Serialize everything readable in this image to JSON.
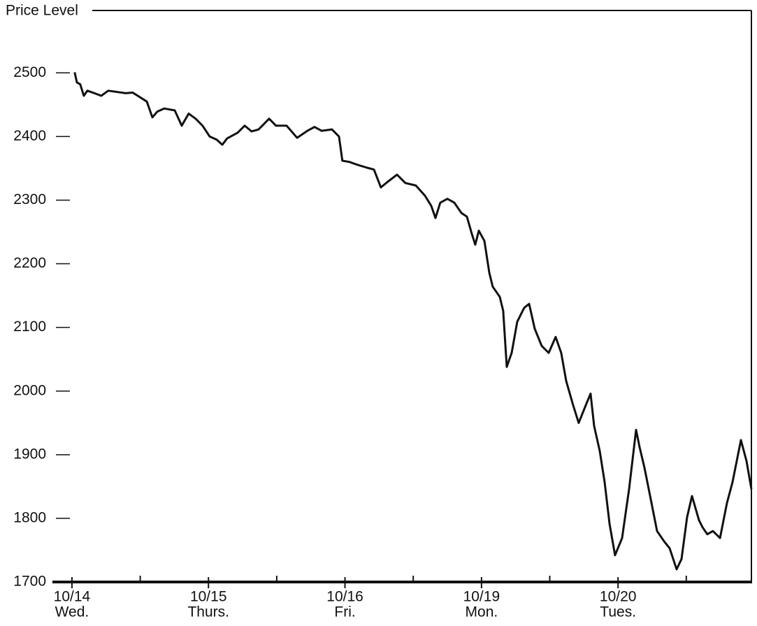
{
  "chart_data": {
    "type": "line",
    "y_axis_label": "Price Level",
    "xlim": [
      -0.143,
      4.977
    ],
    "ylim": [
      1700,
      2598
    ],
    "yticks": [
      1700,
      1800,
      1900,
      2000,
      2100,
      2200,
      2300,
      2400,
      2500
    ],
    "xticks": [
      {
        "value": 0,
        "label": "10/14",
        "sublabel": "Wed."
      },
      {
        "value": 1,
        "label": "10/15",
        "sublabel": "Thurs."
      },
      {
        "value": 2,
        "label": "10/16",
        "sublabel": "Fri."
      },
      {
        "value": 3,
        "label": "10/19",
        "sublabel": "Mon."
      },
      {
        "value": 4,
        "label": "10/20",
        "sublabel": "Tues."
      }
    ],
    "minor_xticks": [
      0.5,
      1.5,
      2.5,
      3.5,
      4.5
    ],
    "series": [
      {
        "color": "#111111",
        "x": [
          0.02,
          0.036,
          0.061,
          0.087,
          0.113,
          0.164,
          0.215,
          0.266,
          0.394,
          0.445,
          0.548,
          0.589,
          0.625,
          0.676,
          0.753,
          0.804,
          0.855,
          0.906,
          0.957,
          1.009,
          1.06,
          1.101,
          1.137,
          1.214,
          1.265,
          1.316,
          1.367,
          1.444,
          1.495,
          1.572,
          1.649,
          1.725,
          1.777,
          1.828,
          1.905,
          1.956,
          1.981,
          2.033,
          2.084,
          2.161,
          2.212,
          2.263,
          2.314,
          2.381,
          2.442,
          2.519,
          2.586,
          2.632,
          2.663,
          2.698,
          2.75,
          2.801,
          2.852,
          2.893,
          2.929,
          2.954,
          2.98,
          3.021,
          3.057,
          3.082,
          3.134,
          3.159,
          3.185,
          3.221,
          3.262,
          3.313,
          3.349,
          3.39,
          3.441,
          3.492,
          3.543,
          3.584,
          3.62,
          3.671,
          3.712,
          3.774,
          3.799,
          3.825,
          3.866,
          3.902,
          3.938,
          3.978,
          4.03,
          4.081,
          4.132,
          4.158,
          4.194,
          4.235,
          4.286,
          4.337,
          4.378,
          4.429,
          4.465,
          4.506,
          4.542,
          4.593,
          4.619,
          4.654,
          4.695,
          4.747,
          4.798,
          4.839,
          4.9,
          4.941,
          4.977
        ],
        "values": [
          2501,
          2485,
          2482,
          2464,
          2472,
          2468,
          2464,
          2472,
          2468,
          2469,
          2455,
          2430,
          2439,
          2444,
          2441,
          2417,
          2436,
          2428,
          2417,
          2400,
          2395,
          2387,
          2397,
          2406,
          2417,
          2408,
          2411,
          2428,
          2417,
          2417,
          2398,
          2409,
          2415,
          2409,
          2411,
          2400,
          2362,
          2360,
          2356,
          2351,
          2348,
          2320,
          2329,
          2340,
          2327,
          2323,
          2307,
          2291,
          2272,
          2296,
          2302,
          2296,
          2280,
          2274,
          2247,
          2230,
          2252,
          2236,
          2186,
          2164,
          2148,
          2126,
          2038,
          2060,
          2109,
          2131,
          2137,
          2098,
          2071,
          2060,
          2085,
          2060,
          2016,
          1978,
          1950,
          1983,
          1996,
          1945,
          1906,
          1857,
          1791,
          1742,
          1769,
          1846,
          1939,
          1912,
          1879,
          1835,
          1780,
          1764,
          1753,
          1720,
          1736,
          1802,
          1835,
          1797,
          1786,
          1775,
          1780,
          1769,
          1824,
          1857,
          1923,
          1890,
          1846
        ]
      }
    ]
  }
}
